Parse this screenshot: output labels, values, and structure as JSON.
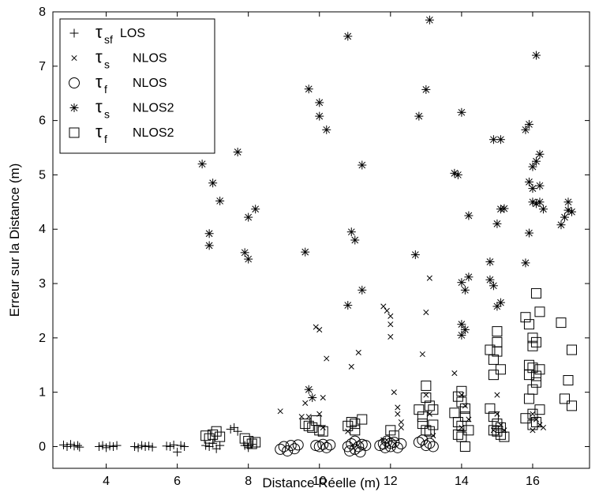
{
  "chart_data": {
    "type": "scatter",
    "xlabel": "Distance Réelle (m)",
    "ylabel": "Erreur sur la Distance (m)",
    "xlim": [
      2.5,
      17.6
    ],
    "ylim": [
      -0.4,
      8.0
    ],
    "xticks": [
      "4",
      "6",
      "8",
      "10",
      "12",
      "14",
      "16"
    ],
    "yticks": [
      "0",
      "1",
      "2",
      "3",
      "4",
      "5",
      "6",
      "7",
      "8"
    ],
    "grid": false,
    "legend_position": "top-left",
    "series": [
      {
        "id": "tsf_los",
        "marker": "plus",
        "legend": {
          "tau_sub": "sf",
          "label": "LOS"
        },
        "points": [
          [
            2.8,
            0.03
          ],
          [
            2.9,
            0.0
          ],
          [
            3.0,
            0.04
          ],
          [
            3.1,
            0.01
          ],
          [
            3.2,
            0.02
          ],
          [
            3.25,
            -0.01
          ],
          [
            3.8,
            0.0
          ],
          [
            3.9,
            0.02
          ],
          [
            4.0,
            -0.02
          ],
          [
            4.1,
            0.01
          ],
          [
            4.2,
            0.0
          ],
          [
            4.3,
            0.02
          ],
          [
            4.8,
            0.0
          ],
          [
            4.9,
            -0.02
          ],
          [
            5.0,
            0.02
          ],
          [
            5.1,
            0.0
          ],
          [
            5.2,
            0.01
          ],
          [
            5.3,
            -0.01
          ],
          [
            5.7,
            0.01
          ],
          [
            5.8,
            0.0
          ],
          [
            5.9,
            0.03
          ],
          [
            6.0,
            -0.1
          ],
          [
            6.1,
            0.02
          ],
          [
            6.2,
            0.0
          ],
          [
            6.8,
            0.02
          ],
          [
            6.9,
            0.0
          ],
          [
            7.0,
            0.06
          ],
          [
            7.1,
            -0.04
          ],
          [
            7.2,
            0.02
          ],
          [
            7.5,
            0.32
          ],
          [
            7.6,
            0.35
          ],
          [
            7.7,
            0.28
          ],
          [
            7.9,
            0.02
          ],
          [
            8.0,
            -0.02
          ],
          [
            8.1,
            0.04
          ]
        ]
      },
      {
        "id": "ts_nlos",
        "marker": "cross",
        "legend": {
          "tau_sub": "s",
          "label": "NLOS"
        },
        "points": [
          [
            8.9,
            0.65
          ],
          [
            9.5,
            0.55
          ],
          [
            9.6,
            0.8
          ],
          [
            9.7,
            0.55
          ],
          [
            9.9,
            2.2
          ],
          [
            10.0,
            2.15
          ],
          [
            10.0,
            0.6
          ],
          [
            10.1,
            0.9
          ],
          [
            10.1,
            0.35
          ],
          [
            10.2,
            1.62
          ],
          [
            10.9,
            1.47
          ],
          [
            11.1,
            1.73
          ],
          [
            10.8,
            0.28
          ],
          [
            11.8,
            2.58
          ],
          [
            11.9,
            2.5
          ],
          [
            12.0,
            2.4
          ],
          [
            12.0,
            2.25
          ],
          [
            12.0,
            2.02
          ],
          [
            12.1,
            1.0
          ],
          [
            12.2,
            0.72
          ],
          [
            12.2,
            0.6
          ],
          [
            12.3,
            0.45
          ],
          [
            12.3,
            0.35
          ],
          [
            11.8,
            0.12
          ],
          [
            12.9,
            1.7
          ],
          [
            13.0,
            2.47
          ],
          [
            13.1,
            3.1
          ],
          [
            13.0,
            0.95
          ],
          [
            13.1,
            0.6
          ],
          [
            13.2,
            0.2
          ],
          [
            13.8,
            1.35
          ],
          [
            14.0,
            0.95
          ],
          [
            14.1,
            0.75
          ],
          [
            14.2,
            0.5
          ],
          [
            14.0,
            0.35
          ],
          [
            14.9,
            0.3
          ],
          [
            15.0,
            0.95
          ],
          [
            15.0,
            0.6
          ],
          [
            15.1,
            0.4
          ],
          [
            15.2,
            0.3
          ],
          [
            16.0,
            0.6
          ],
          [
            16.0,
            0.3
          ],
          [
            16.1,
            0.5
          ],
          [
            16.2,
            0.4
          ],
          [
            16.3,
            0.35
          ]
        ]
      },
      {
        "id": "tf_nlos",
        "marker": "circle",
        "legend": {
          "tau_sub": "f",
          "label": "NLOS"
        },
        "points": [
          [
            8.9,
            -0.05
          ],
          [
            9.0,
            0.0
          ],
          [
            9.1,
            -0.08
          ],
          [
            9.2,
            0.02
          ],
          [
            9.3,
            -0.04
          ],
          [
            9.4,
            0.03
          ],
          [
            9.9,
            0.02
          ],
          [
            10.0,
            0.0
          ],
          [
            10.1,
            0.04
          ],
          [
            10.2,
            -0.02
          ],
          [
            10.3,
            0.03
          ],
          [
            10.8,
            0.0
          ],
          [
            10.85,
            -0.08
          ],
          [
            10.9,
            0.05
          ],
          [
            11.0,
            -0.05
          ],
          [
            11.0,
            0.1
          ],
          [
            11.1,
            0.0
          ],
          [
            11.15,
            -0.1
          ],
          [
            11.2,
            0.04
          ],
          [
            11.3,
            0.02
          ],
          [
            11.7,
            0.02
          ],
          [
            11.8,
            0.05
          ],
          [
            11.85,
            -0.02
          ],
          [
            11.9,
            0.1
          ],
          [
            12.0,
            0.0
          ],
          [
            12.0,
            0.06
          ],
          [
            12.1,
            0.08
          ],
          [
            12.2,
            -0.02
          ],
          [
            12.3,
            0.05
          ],
          [
            12.8,
            0.08
          ],
          [
            12.9,
            0.12
          ],
          [
            13.0,
            0.02
          ],
          [
            13.1,
            0.06
          ],
          [
            13.2,
            0.0
          ]
        ]
      },
      {
        "id": "ts_nlos2",
        "marker": "star",
        "legend": {
          "tau_sub": "s",
          "label": "NLOS2"
        },
        "points": [
          [
            6.7,
            5.2
          ],
          [
            6.9,
            3.92
          ],
          [
            6.9,
            3.7
          ],
          [
            7.0,
            4.85
          ],
          [
            7.2,
            4.52
          ],
          [
            7.7,
            5.42
          ],
          [
            7.9,
            3.57
          ],
          [
            8.0,
            3.45
          ],
          [
            8.0,
            4.22
          ],
          [
            8.2,
            4.37
          ],
          [
            9.6,
            3.58
          ],
          [
            9.7,
            6.58
          ],
          [
            9.7,
            1.05
          ],
          [
            9.8,
            0.9
          ],
          [
            10.0,
            6.33
          ],
          [
            10.0,
            6.08
          ],
          [
            10.2,
            5.83
          ],
          [
            10.8,
            7.55
          ],
          [
            10.8,
            2.6
          ],
          [
            10.9,
            3.95
          ],
          [
            11.0,
            3.8
          ],
          [
            11.2,
            5.18
          ],
          [
            11.2,
            2.88
          ],
          [
            12.7,
            3.53
          ],
          [
            12.8,
            6.08
          ],
          [
            13.0,
            6.57
          ],
          [
            13.1,
            7.85
          ],
          [
            13.8,
            5.03
          ],
          [
            13.9,
            5.0
          ],
          [
            14.0,
            6.15
          ],
          [
            14.0,
            3.02
          ],
          [
            14.1,
            2.88
          ],
          [
            14.2,
            3.12
          ],
          [
            14.2,
            4.25
          ],
          [
            14.0,
            2.25
          ],
          [
            14.1,
            2.15
          ],
          [
            14.0,
            2.05
          ],
          [
            14.8,
            3.4
          ],
          [
            14.8,
            3.07
          ],
          [
            14.9,
            2.96
          ],
          [
            14.9,
            5.65
          ],
          [
            15.0,
            4.1
          ],
          [
            15.0,
            2.58
          ],
          [
            15.1,
            4.37
          ],
          [
            15.1,
            5.65
          ],
          [
            15.2,
            4.38
          ],
          [
            15.1,
            2.65
          ],
          [
            15.8,
            5.83
          ],
          [
            15.9,
            5.93
          ],
          [
            15.8,
            3.38
          ],
          [
            15.9,
            3.93
          ],
          [
            15.9,
            4.87
          ],
          [
            16.0,
            4.75
          ],
          [
            16.0,
            4.5
          ],
          [
            16.1,
            4.47
          ],
          [
            16.0,
            5.15
          ],
          [
            16.1,
            5.25
          ],
          [
            16.2,
            4.8
          ],
          [
            16.2,
            5.38
          ],
          [
            16.1,
            7.2
          ],
          [
            16.3,
            4.37
          ],
          [
            16.2,
            4.5
          ],
          [
            16.8,
            4.08
          ],
          [
            16.9,
            4.22
          ],
          [
            17.0,
            4.35
          ],
          [
            17.0,
            4.5
          ],
          [
            17.1,
            4.32
          ]
        ]
      },
      {
        "id": "tf_nlos2",
        "marker": "square",
        "legend": {
          "tau_sub": "f",
          "label": "NLOS2"
        },
        "points": [
          [
            6.8,
            0.2
          ],
          [
            6.9,
            0.15
          ],
          [
            7.0,
            0.22
          ],
          [
            7.1,
            0.28
          ],
          [
            7.2,
            0.18
          ],
          [
            7.9,
            0.15
          ],
          [
            8.0,
            0.1
          ],
          [
            8.1,
            0.05
          ],
          [
            8.2,
            0.08
          ],
          [
            9.6,
            0.42
          ],
          [
            9.7,
            0.38
          ],
          [
            9.8,
            0.35
          ],
          [
            9.9,
            0.48
          ],
          [
            10.0,
            0.3
          ],
          [
            10.1,
            0.28
          ],
          [
            10.8,
            0.38
          ],
          [
            10.9,
            0.45
          ],
          [
            11.0,
            0.42
          ],
          [
            11.2,
            0.5
          ],
          [
            11.0,
            0.3
          ],
          [
            12.0,
            0.3
          ],
          [
            12.1,
            0.2
          ],
          [
            12.8,
            0.68
          ],
          [
            12.9,
            0.55
          ],
          [
            13.0,
            0.9
          ],
          [
            13.0,
            1.12
          ],
          [
            13.1,
            0.75
          ],
          [
            13.2,
            0.68
          ],
          [
            12.9,
            0.42
          ],
          [
            13.0,
            0.3
          ],
          [
            13.1,
            0.28
          ],
          [
            13.2,
            0.4
          ],
          [
            13.8,
            0.62
          ],
          [
            13.9,
            0.92
          ],
          [
            14.0,
            1.02
          ],
          [
            14.0,
            0.82
          ],
          [
            14.1,
            0.7
          ],
          [
            14.1,
            0.55
          ],
          [
            13.9,
            0.45
          ],
          [
            14.0,
            0.38
          ],
          [
            14.2,
            0.3
          ],
          [
            14.0,
            0.18
          ],
          [
            14.1,
            0.0
          ],
          [
            13.9,
            0.22
          ],
          [
            14.8,
            1.78
          ],
          [
            14.9,
            1.6
          ],
          [
            14.9,
            1.32
          ],
          [
            15.0,
            2.12
          ],
          [
            15.0,
            1.92
          ],
          [
            15.1,
            1.42
          ],
          [
            15.0,
            1.75
          ],
          [
            14.8,
            0.7
          ],
          [
            14.9,
            0.55
          ],
          [
            15.0,
            0.42
          ],
          [
            15.1,
            0.35
          ],
          [
            15.0,
            0.28
          ],
          [
            15.1,
            0.22
          ],
          [
            15.2,
            0.18
          ],
          [
            14.9,
            0.3
          ],
          [
            15.8,
            2.38
          ],
          [
            15.9,
            2.25
          ],
          [
            16.0,
            2.0
          ],
          [
            16.1,
            2.82
          ],
          [
            16.2,
            2.48
          ],
          [
            16.1,
            1.92
          ],
          [
            16.0,
            1.85
          ],
          [
            15.9,
            1.5
          ],
          [
            16.0,
            1.45
          ],
          [
            16.1,
            1.3
          ],
          [
            16.2,
            1.42
          ],
          [
            16.1,
            1.18
          ],
          [
            15.9,
            1.32
          ],
          [
            16.0,
            1.05
          ],
          [
            15.9,
            0.88
          ],
          [
            16.0,
            0.6
          ],
          [
            16.1,
            0.45
          ],
          [
            16.2,
            0.68
          ],
          [
            15.8,
            0.52
          ],
          [
            16.0,
            0.4
          ],
          [
            16.8,
            2.28
          ],
          [
            17.0,
            1.22
          ],
          [
            17.1,
            1.78
          ],
          [
            16.9,
            0.88
          ],
          [
            17.1,
            0.75
          ]
        ]
      }
    ]
  }
}
